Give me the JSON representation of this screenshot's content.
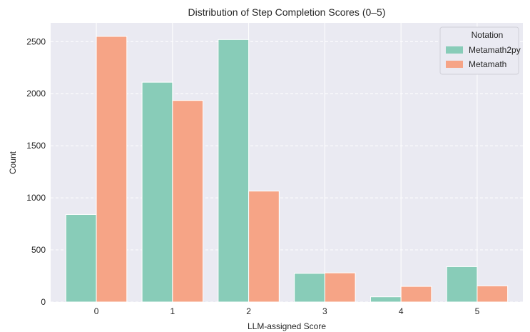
{
  "chart_data": {
    "type": "bar",
    "title": "Distribution of Step Completion Scores (0–5)",
    "xlabel": "LLM-assigned Score",
    "ylabel": "Count",
    "categories": [
      "0",
      "1",
      "2",
      "3",
      "4",
      "5"
    ],
    "series": [
      {
        "name": "Metamath2py",
        "color": "#88ccb8",
        "values": [
          840,
          2110,
          2520,
          275,
          50,
          340
        ]
      },
      {
        "name": "Metamath",
        "color": "#f6a486",
        "values": [
          2550,
          1935,
          1065,
          280,
          150,
          155
        ]
      }
    ],
    "ylim": [
      0,
      2680
    ],
    "yticks": [
      0,
      500,
      1000,
      1500,
      2000,
      2500
    ],
    "grid": true,
    "legend": {
      "title": "Notation",
      "placement": "top-right"
    },
    "colors": {
      "plot_background": "#eaeaf2",
      "grid": "#ffffff"
    }
  }
}
